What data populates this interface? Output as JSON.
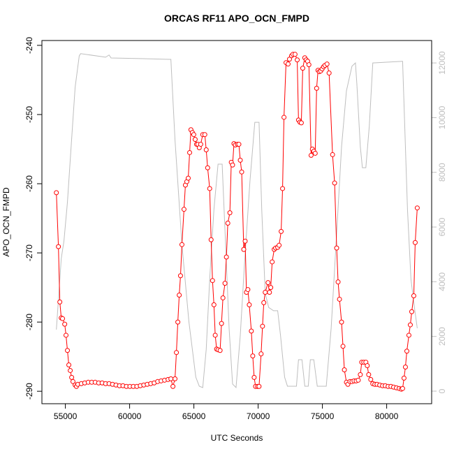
{
  "chart_data": {
    "type": "line",
    "title": "ORCAS RF11 APO_OCN_FMPD",
    "x_label": "UTC Seconds",
    "y_label": "APO_OCN_FMPD",
    "xlim": [
      53175,
      83500
    ],
    "xticks": [
      55000,
      60000,
      65000,
      70000,
      75000,
      80000
    ],
    "ylim": [
      -291.8,
      -239.3
    ],
    "yticks": [
      -290,
      -280,
      -270,
      -260,
      -250,
      -240
    ],
    "y2lim": [
      -460,
      12820
    ],
    "y2ticks": [
      0,
      2000,
      4000,
      6000,
      8000,
      10000,
      12000
    ],
    "series": [
      {
        "color": "#bebebe",
        "axis": "y2",
        "markers": false,
        "x": [
          54300,
          54680,
          54890,
          55160,
          55430,
          55760,
          56080,
          56190,
          58130,
          58400,
          58560,
          60830,
          63100,
          63210,
          63530,
          64070,
          64610,
          65150,
          65420,
          65690,
          65960,
          66230,
          66560,
          66880,
          67200,
          67420,
          67740,
          68010,
          68280,
          68610,
          68930,
          69360,
          69740,
          70070,
          70280,
          70550,
          70820,
          71200,
          71520,
          71740,
          72060,
          72280,
          72980,
          73140,
          73410,
          73630,
          73900,
          74060,
          74330,
          74600,
          75300,
          75680,
          76060,
          76490,
          76870,
          77300,
          77570,
          77680,
          77950,
          78110,
          78380,
          78650,
          78920,
          81240,
          81620,
          81890,
          82160,
          82380
        ],
        "values": [
          2250,
          4850,
          5490,
          6900,
          8810,
          11110,
          12260,
          12340,
          12210,
          12290,
          12180,
          12160,
          12130,
          12130,
          9190,
          5360,
          2550,
          510,
          180,
          130,
          1530,
          4090,
          6640,
          8300,
          8300,
          5870,
          2300,
          260,
          130,
          2040,
          4600,
          7660,
          9830,
          9830,
          6640,
          3580,
          3060,
          2940,
          2940,
          2040,
          510,
          180,
          180,
          1150,
          1150,
          180,
          180,
          1150,
          1150,
          180,
          180,
          2300,
          5360,
          8940,
          10980,
          11880,
          12000,
          11240,
          8940,
          8170,
          8170,
          9700,
          12000,
          12060,
          6640,
          4090,
          3060,
          2300
        ]
      },
      {
        "color": "#ff0000",
        "axis": "y",
        "markers": true,
        "x": [
          54300,
          54460,
          54570,
          54680,
          54780,
          54950,
          55050,
          55160,
          55270,
          55380,
          55490,
          55590,
          55760,
          55860,
          55970,
          56240,
          56510,
          56780,
          57050,
          57320,
          57590,
          57860,
          58130,
          58400,
          58670,
          58940,
          59210,
          59480,
          59750,
          60020,
          60290,
          60560,
          60830,
          61100,
          61370,
          61640,
          61910,
          62180,
          62450,
          62720,
          62990,
          63210,
          63370,
          63530,
          63640,
          63750,
          63860,
          63960,
          64070,
          64230,
          64340,
          64450,
          64560,
          64670,
          64770,
          64880,
          64990,
          65100,
          65210,
          65310,
          65420,
          65530,
          65690,
          65850,
          65960,
          66070,
          66230,
          66340,
          66450,
          66560,
          66660,
          66770,
          66880,
          67040,
          67150,
          67260,
          67420,
          67530,
          67640,
          67800,
          67910,
          68010,
          68120,
          68230,
          68390,
          68500,
          68610,
          68720,
          68880,
          68990,
          69090,
          69200,
          69310,
          69470,
          69580,
          69690,
          69800,
          69960,
          70070,
          70230,
          70340,
          70440,
          70550,
          70770,
          70880,
          70980,
          71090,
          71250,
          71360,
          71520,
          71630,
          71790,
          71900,
          72010,
          72170,
          72330,
          72440,
          72600,
          72710,
          72870,
          73040,
          73140,
          73250,
          73360,
          73470,
          73630,
          73740,
          73850,
          73950,
          74120,
          74220,
          74330,
          74440,
          74550,
          74660,
          74760,
          74870,
          74980,
          75090,
          75200,
          75360,
          75520,
          75790,
          75950,
          76110,
          76220,
          76330,
          76490,
          76600,
          76710,
          76870,
          76980,
          77140,
          77300,
          77460,
          77630,
          77790,
          77950,
          78060,
          78220,
          78380,
          78490,
          78600,
          78760,
          78920,
          79080,
          79250,
          79460,
          79680,
          79890,
          80110,
          80330,
          80540,
          80760,
          80970,
          81140,
          81240,
          81350,
          81460,
          81570,
          81730,
          81840,
          81950,
          82110,
          82220,
          82380
        ],
        "values": [
          -261.3,
          -269.1,
          -277.1,
          -279.4,
          -279.5,
          -280.3,
          -281.9,
          -284.1,
          -286.2,
          -287.0,
          -288.0,
          -288.6,
          -289.1,
          -289.3,
          -289.0,
          -288.9,
          -288.8,
          -288.7,
          -288.7,
          -288.7,
          -288.8,
          -288.8,
          -288.9,
          -288.9,
          -289.0,
          -289.1,
          -289.2,
          -289.2,
          -289.3,
          -289.3,
          -289.3,
          -289.3,
          -289.2,
          -289.1,
          -289.0,
          -288.9,
          -288.8,
          -288.6,
          -288.5,
          -288.4,
          -288.3,
          -288.2,
          -289.3,
          -288.2,
          -284.4,
          -280.0,
          -276.1,
          -273.3,
          -268.8,
          -263.7,
          -260.2,
          -259.7,
          -259.2,
          -255.5,
          -252.2,
          -252.6,
          -252.9,
          -253.6,
          -254.3,
          -254.3,
          -254.8,
          -254.3,
          -252.9,
          -252.9,
          -255.1,
          -257.7,
          -260.7,
          -268.1,
          -274.0,
          -277.5,
          -281.9,
          -283.9,
          -284.0,
          -284.1,
          -280.2,
          -276.5,
          -274.4,
          -270.6,
          -265.7,
          -264.2,
          -256.9,
          -257.3,
          -254.2,
          -254.4,
          -254.3,
          -254.3,
          -256.6,
          -258.3,
          -269.5,
          -268.3,
          -275.7,
          -275.3,
          -277.5,
          -281.3,
          -284.9,
          -288.0,
          -289.3,
          -289.3,
          -289.3,
          -284.6,
          -280.6,
          -277.2,
          -275.7,
          -274.3,
          -275.7,
          -275.0,
          -271.3,
          -269.5,
          -269.3,
          -269.2,
          -268.9,
          -266.9,
          -260.7,
          -250.4,
          -242.5,
          -242.7,
          -242.0,
          -241.5,
          -241.3,
          -241.3,
          -242.1,
          -250.8,
          -251.1,
          -251.2,
          -243.3,
          -241.8,
          -242.1,
          -242.3,
          -242.8,
          -255.9,
          -255.0,
          -255.3,
          -255.6,
          -246.2,
          -243.6,
          -243.8,
          -243.7,
          -243.4,
          -243.1,
          -242.9,
          -242.7,
          -244.0,
          -255.8,
          -259.9,
          -269.3,
          -274.2,
          -276.7,
          -280.0,
          -283.5,
          -286.9,
          -288.7,
          -289.0,
          -288.6,
          -288.6,
          -288.5,
          -288.5,
          -288.4,
          -287.6,
          -285.8,
          -285.8,
          -285.8,
          -286.3,
          -287.6,
          -288.3,
          -288.9,
          -289.0,
          -289.0,
          -289.1,
          -289.2,
          -289.2,
          -289.3,
          -289.3,
          -289.4,
          -289.5,
          -289.6,
          -289.7,
          -289.6,
          -288.1,
          -286.5,
          -284.2,
          -281.9,
          -280.4,
          -278.5,
          -276.2,
          -268.5,
          -263.5
        ]
      }
    ]
  }
}
